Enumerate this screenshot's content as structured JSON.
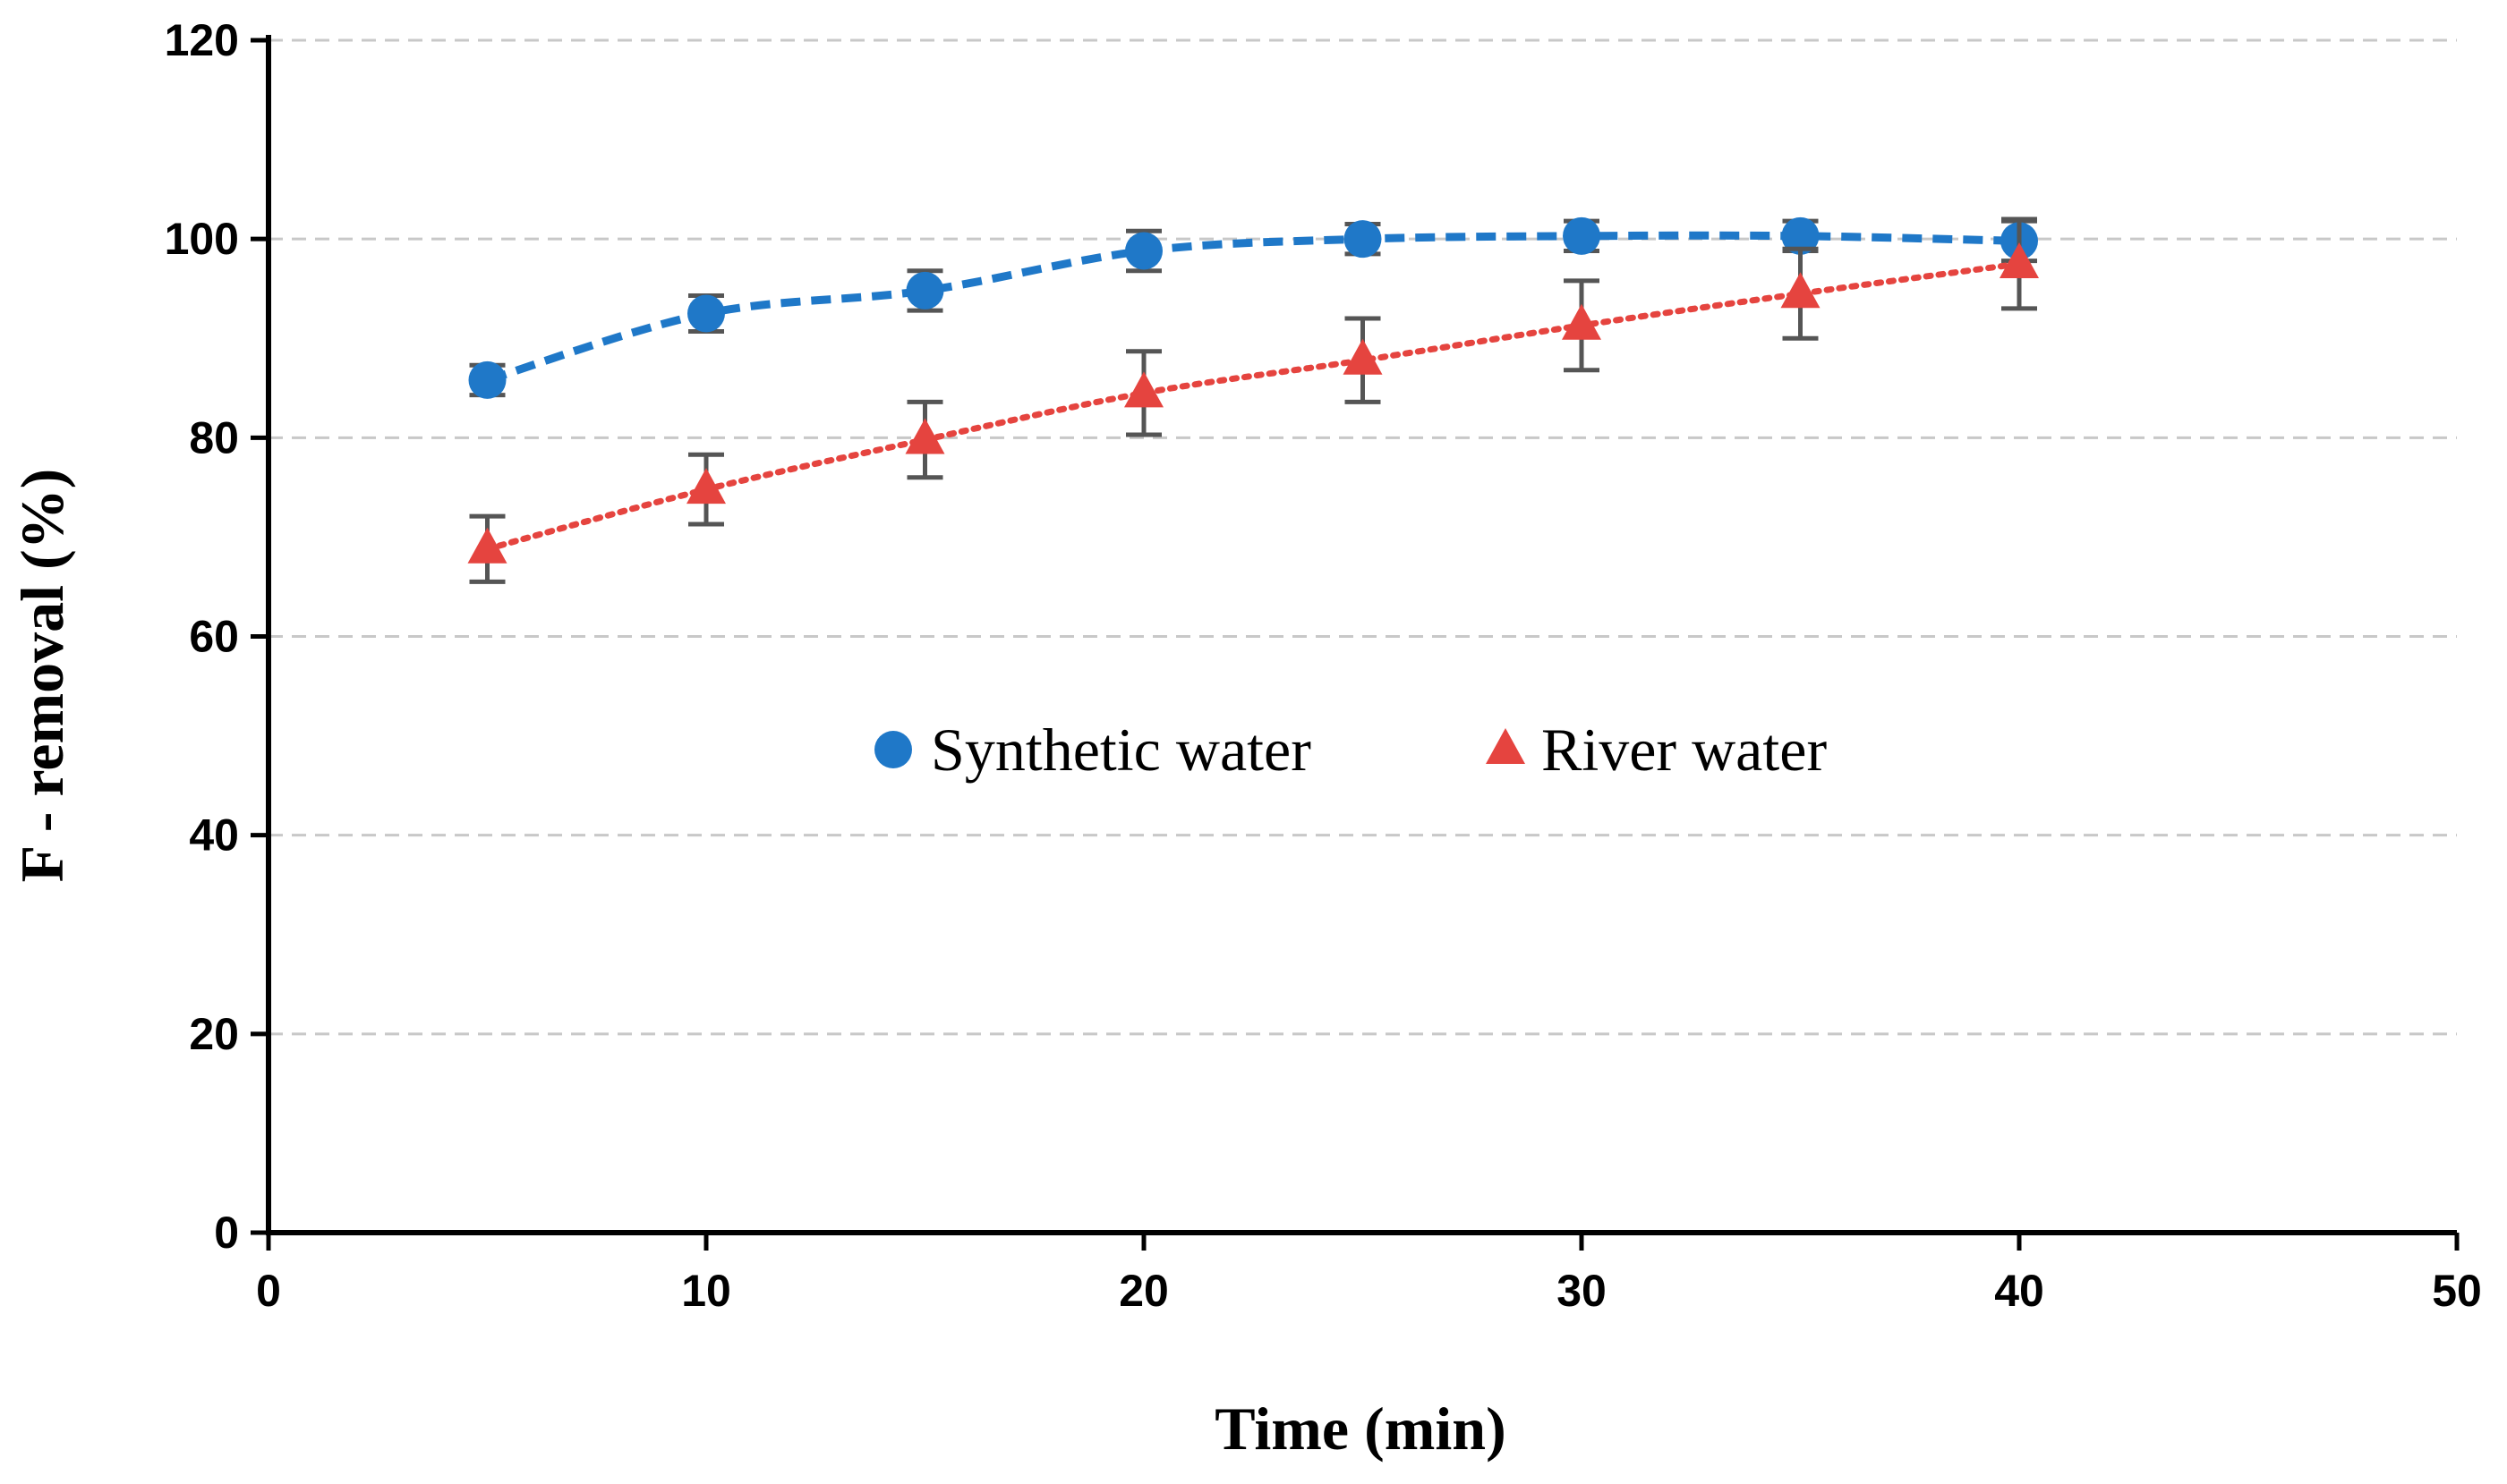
{
  "chart_data": {
    "type": "line",
    "xlabel": "Time (min)",
    "ylabel": "F - removal (%)",
    "xlim": [
      0,
      50
    ],
    "ylim": [
      0,
      120
    ],
    "xticks": [
      "0",
      "10",
      "20",
      "30",
      "40",
      "50"
    ],
    "yticks": [
      "0",
      "20",
      "40",
      "60",
      "80",
      "100",
      "120"
    ],
    "grid": "horizontal dashed",
    "legend_position": "center",
    "series": [
      {
        "name": "Synthetic water",
        "color": "#1F78C8",
        "marker": "circle",
        "line_style": "dashed",
        "x": [
          5,
          10,
          15,
          20,
          25,
          30,
          35,
          40
        ],
        "y": [
          85.8,
          92.5,
          94.8,
          98.8,
          100.0,
          100.3,
          100.3,
          99.8
        ],
        "error": [
          1.5,
          1.8,
          2.0,
          2.0,
          1.5,
          1.5,
          1.5,
          2.0
        ]
      },
      {
        "name": "River water",
        "color": "#E5443F",
        "marker": "triangle",
        "line_style": "dotted",
        "x": [
          5,
          10,
          15,
          20,
          25,
          30,
          35,
          40
        ],
        "y": [
          68.8,
          74.8,
          79.8,
          84.5,
          87.8,
          91.3,
          94.5,
          97.5
        ],
        "error": [
          3.3,
          3.5,
          3.8,
          4.2,
          4.2,
          4.5,
          4.5,
          4.5
        ]
      }
    ]
  }
}
